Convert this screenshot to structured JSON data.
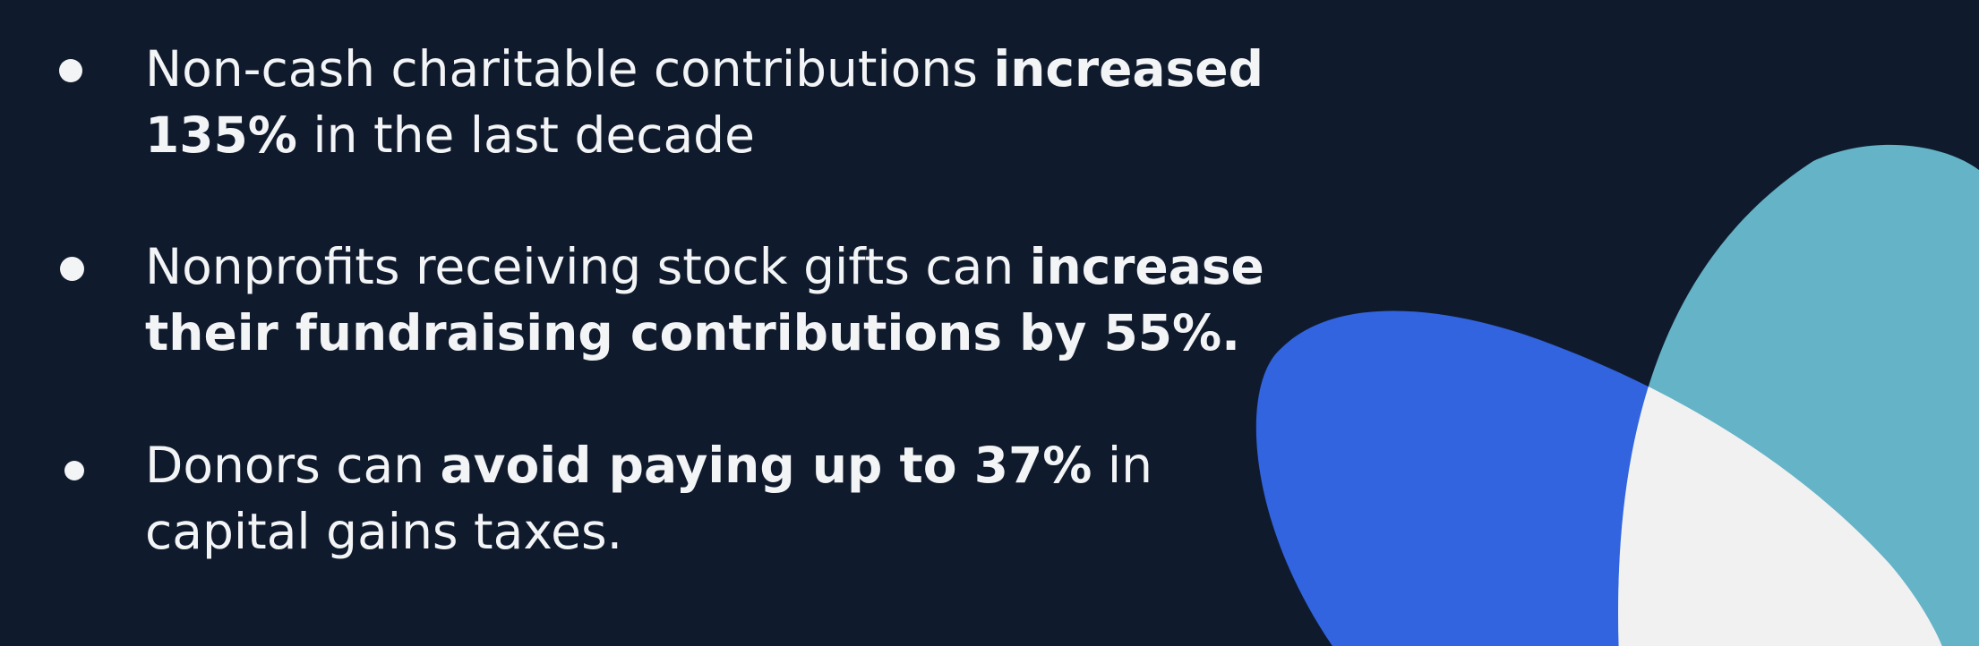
{
  "colors": {
    "background": "#0f1b2d",
    "text": "#f3f4f6",
    "shape_blue": "#3264e0",
    "shape_teal": "#64b3c7",
    "shape_light": "#f1f1f2"
  },
  "bullets": [
    {
      "normal_1": "Non-cash charitable contributions ",
      "bold": "increased 135%",
      "normal_2": " in the last decade"
    },
    {
      "normal_1": "Nonprofits receiving stock gifts can ",
      "bold": "increase their fundraising contributions by 55%.",
      "normal_2": ""
    },
    {
      "normal_1": "Donors can ",
      "bold": "avoid paying up to 37%",
      "normal_2": " in capital gains taxes."
    }
  ]
}
